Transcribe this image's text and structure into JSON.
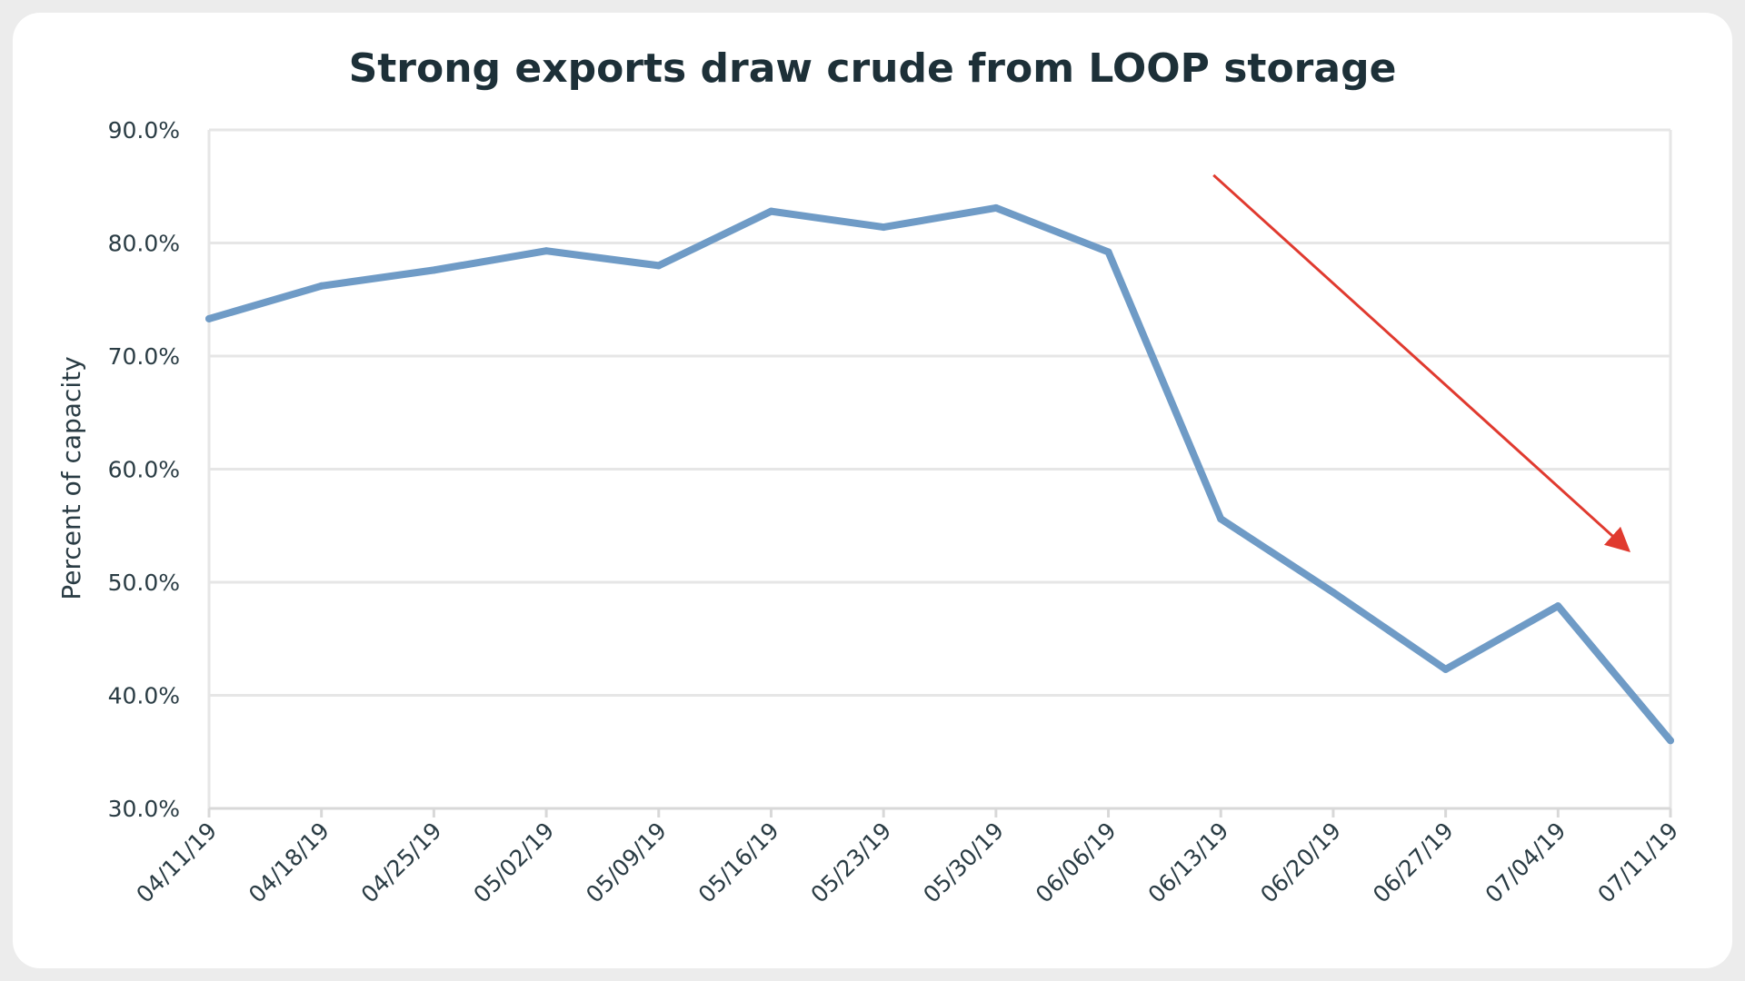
{
  "chart_data": {
    "type": "line",
    "title": "Strong exports draw crude from LOOP storage",
    "xlabel": "",
    "ylabel": "Percent of capacity",
    "x": [
      "04/11/19",
      "04/18/19",
      "04/25/19",
      "05/02/19",
      "05/09/19",
      "05/16/19",
      "05/23/19",
      "05/30/19",
      "06/06/19",
      "06/13/19",
      "06/20/19",
      "06/27/19",
      "07/04/19",
      "07/11/19"
    ],
    "series": [
      {
        "values": [
          73.3,
          76.2,
          77.6,
          79.3,
          78.0,
          82.8,
          81.4,
          83.1,
          79.2,
          55.6,
          49.1,
          42.3,
          47.9,
          36.0
        ],
        "color": "#6f9bc6"
      }
    ],
    "ylim": [
      30,
      90
    ],
    "yticks": [
      "30.0%",
      "40.0%",
      "50.0%",
      "60.0%",
      "70.0%",
      "80.0%",
      "90.0%"
    ],
    "ytick_values": [
      30,
      40,
      50,
      60,
      70,
      80,
      90
    ],
    "grid": true,
    "annotations": [
      {
        "type": "arrow",
        "color": "#e03a2f",
        "from": {
          "x": "06/13/19",
          "y": 86
        },
        "to": {
          "x": "07/11/19",
          "y": 52.8
        }
      }
    ]
  }
}
